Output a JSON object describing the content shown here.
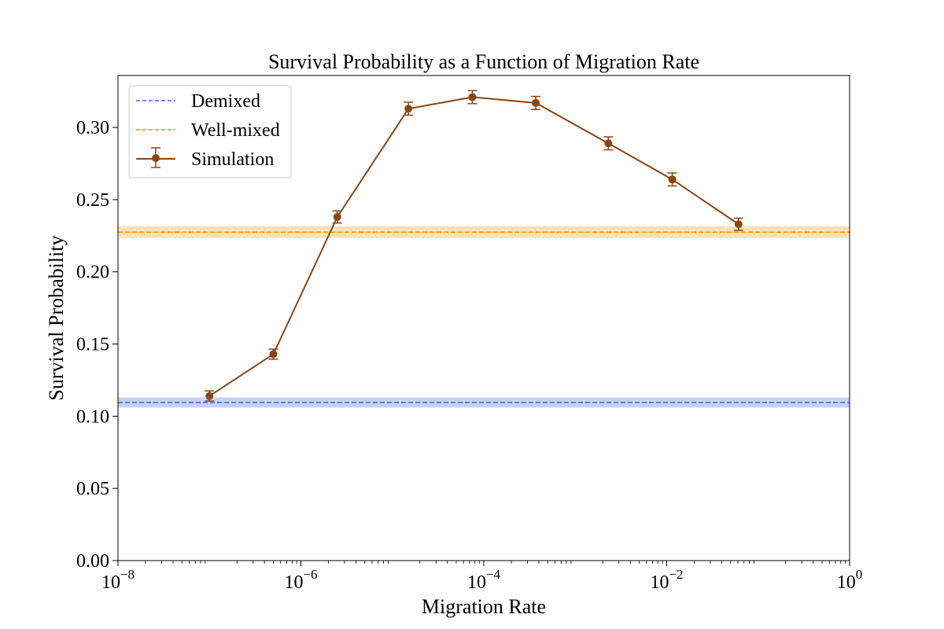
{
  "chart_data": {
    "type": "line",
    "title": "Survival Probability as a Function of Migration Rate",
    "xlabel": "Migration Rate",
    "ylabel": "Survival Probability",
    "x_scale": "log",
    "xlim": [
      1e-08,
      1
    ],
    "ylim": [
      0,
      0.336
    ],
    "x_ticks": [
      {
        "base": "10",
        "exp": "−8",
        "value": 1e-08
      },
      {
        "base": "10",
        "exp": "−6",
        "value": 1e-06
      },
      {
        "base": "10",
        "exp": "−4",
        "value": 0.0001
      },
      {
        "base": "10",
        "exp": "−2",
        "value": 0.01
      },
      {
        "base": "10",
        "exp": "0",
        "value": 1
      }
    ],
    "y_ticks": [
      {
        "label": "0.00",
        "value": 0.0
      },
      {
        "label": "0.05",
        "value": 0.05
      },
      {
        "label": "0.10",
        "value": 0.1
      },
      {
        "label": "0.15",
        "value": 0.15
      },
      {
        "label": "0.20",
        "value": 0.2
      },
      {
        "label": "0.25",
        "value": 0.25
      },
      {
        "label": "0.30",
        "value": 0.3
      }
    ],
    "grid": false,
    "legend_position": "top-left",
    "reference_lines": [
      {
        "name": "Demixed",
        "y": 0.1095,
        "band": [
          0.106,
          0.113
        ],
        "color": "#4169e1",
        "band_color": "#6d8ef0",
        "style": "dashed"
      },
      {
        "name": "Well-mixed",
        "y": 0.2275,
        "band": [
          0.2235,
          0.2315
        ],
        "color": "#ff8c00",
        "band_color": "#ffb347",
        "style": "dashed"
      }
    ],
    "series": [
      {
        "name": "Simulation",
        "color": "#8b4513",
        "x": [
          1e-07,
          5e-07,
          2.5e-06,
          1.5e-05,
          7.5e-05,
          0.00037,
          0.0023,
          0.0115,
          0.061
        ],
        "y": [
          0.114,
          0.143,
          0.238,
          0.313,
          0.321,
          0.317,
          0.289,
          0.264,
          0.233
        ],
        "error": [
          0.0035,
          0.0035,
          0.0042,
          0.0045,
          0.0045,
          0.0045,
          0.0045,
          0.0045,
          0.0042
        ]
      }
    ]
  }
}
